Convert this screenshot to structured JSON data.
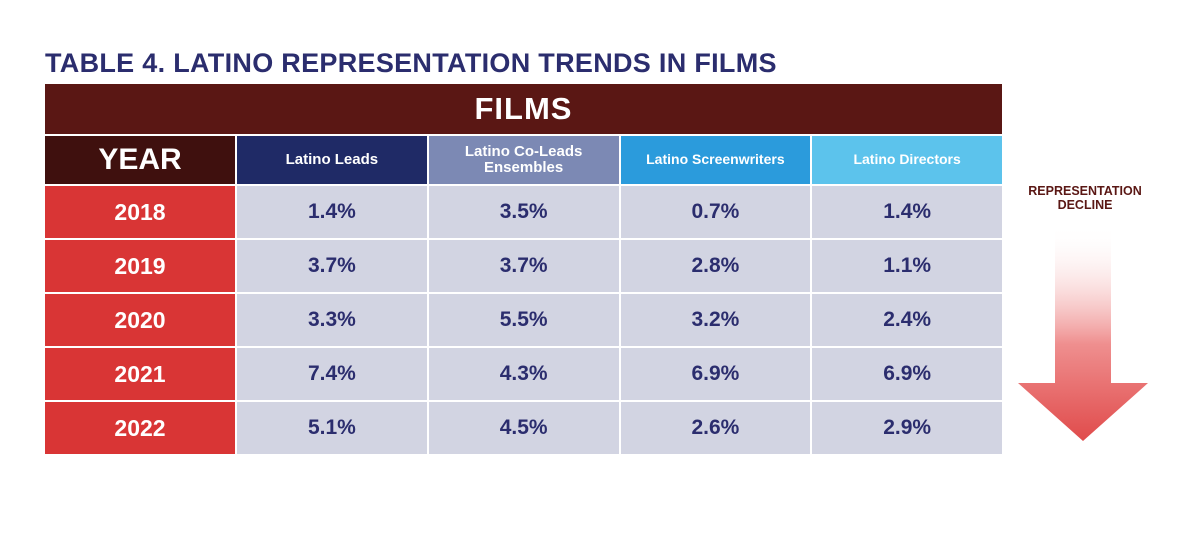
{
  "title": "TABLE 4. LATINO REPRESENTATION TRENDS IN FILMS",
  "banner": "FILMS",
  "annotation": "REPRESENTATION\nDECLINE",
  "colors": {
    "banner": "#5a1714",
    "year": "#d93535",
    "cells": "#d2d4e2",
    "arrow": "#e04b4b"
  },
  "chart_data": {
    "type": "table",
    "columns": [
      "YEAR",
      "Latino Leads",
      "Latino Co-Leads Ensembles",
      "Latino Screenwriters",
      "Latino Directors"
    ],
    "rows": [
      [
        "2018",
        "1.4%",
        "3.5%",
        "0.7%",
        "1.4%"
      ],
      [
        "2019",
        "3.7%",
        "3.7%",
        "2.8%",
        "1.1%"
      ],
      [
        "2020",
        "3.3%",
        "5.5%",
        "3.2%",
        "2.4%"
      ],
      [
        "2021",
        "7.4%",
        "4.3%",
        "6.9%",
        "6.9%"
      ],
      [
        "2022",
        "5.1%",
        "4.5%",
        "2.6%",
        "2.9%"
      ]
    ]
  }
}
